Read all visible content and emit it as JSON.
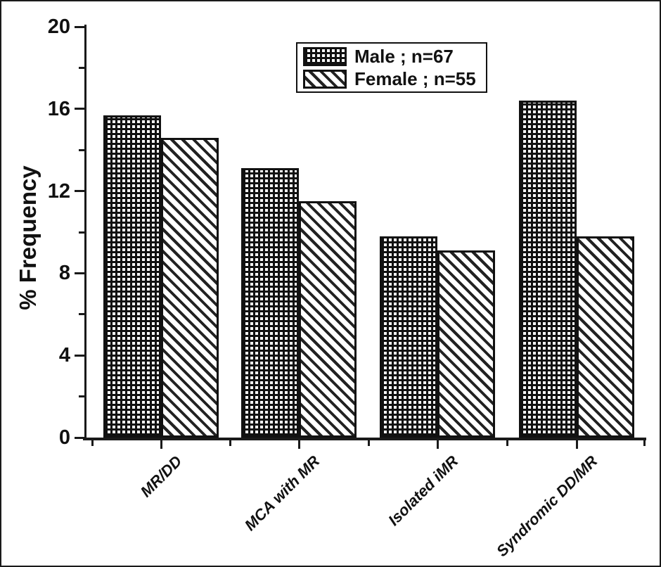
{
  "figure": {
    "kind": "grouped-bar-figure",
    "background": "#ffffff",
    "ink_color": "#111111",
    "border_color": "#1a1a1a"
  },
  "chart_data": {
    "type": "bar",
    "title": "",
    "xlabel": "",
    "ylabel": "% Frequency",
    "categories": [
      "MR/DD",
      "MCA with MR",
      "Isolated iMR",
      "Syndromic DD/MR"
    ],
    "series": [
      {
        "name": "Male ; n=67",
        "pattern": "checkerboard-mesh",
        "values": [
          15.7,
          13.1,
          9.8,
          16.4
        ]
      },
      {
        "name": "Female ; n=55",
        "pattern": "diagonal-hatch",
        "values": [
          14.6,
          11.5,
          9.1,
          9.8
        ]
      }
    ],
    "ylim": [
      0,
      20
    ],
    "yticks_major": [
      0,
      4,
      8,
      12,
      16,
      20
    ],
    "yticks_minor": [
      2,
      6,
      10,
      14,
      18
    ],
    "grid": false,
    "legend_position": "top-center-inside",
    "x_tick_label_rotation_deg": -45
  },
  "legend": {
    "items": [
      {
        "label": "Male ; n=67",
        "pattern": "checkerboard-mesh"
      },
      {
        "label": "Female ; n=55",
        "pattern": "diagonal-hatch"
      }
    ]
  }
}
